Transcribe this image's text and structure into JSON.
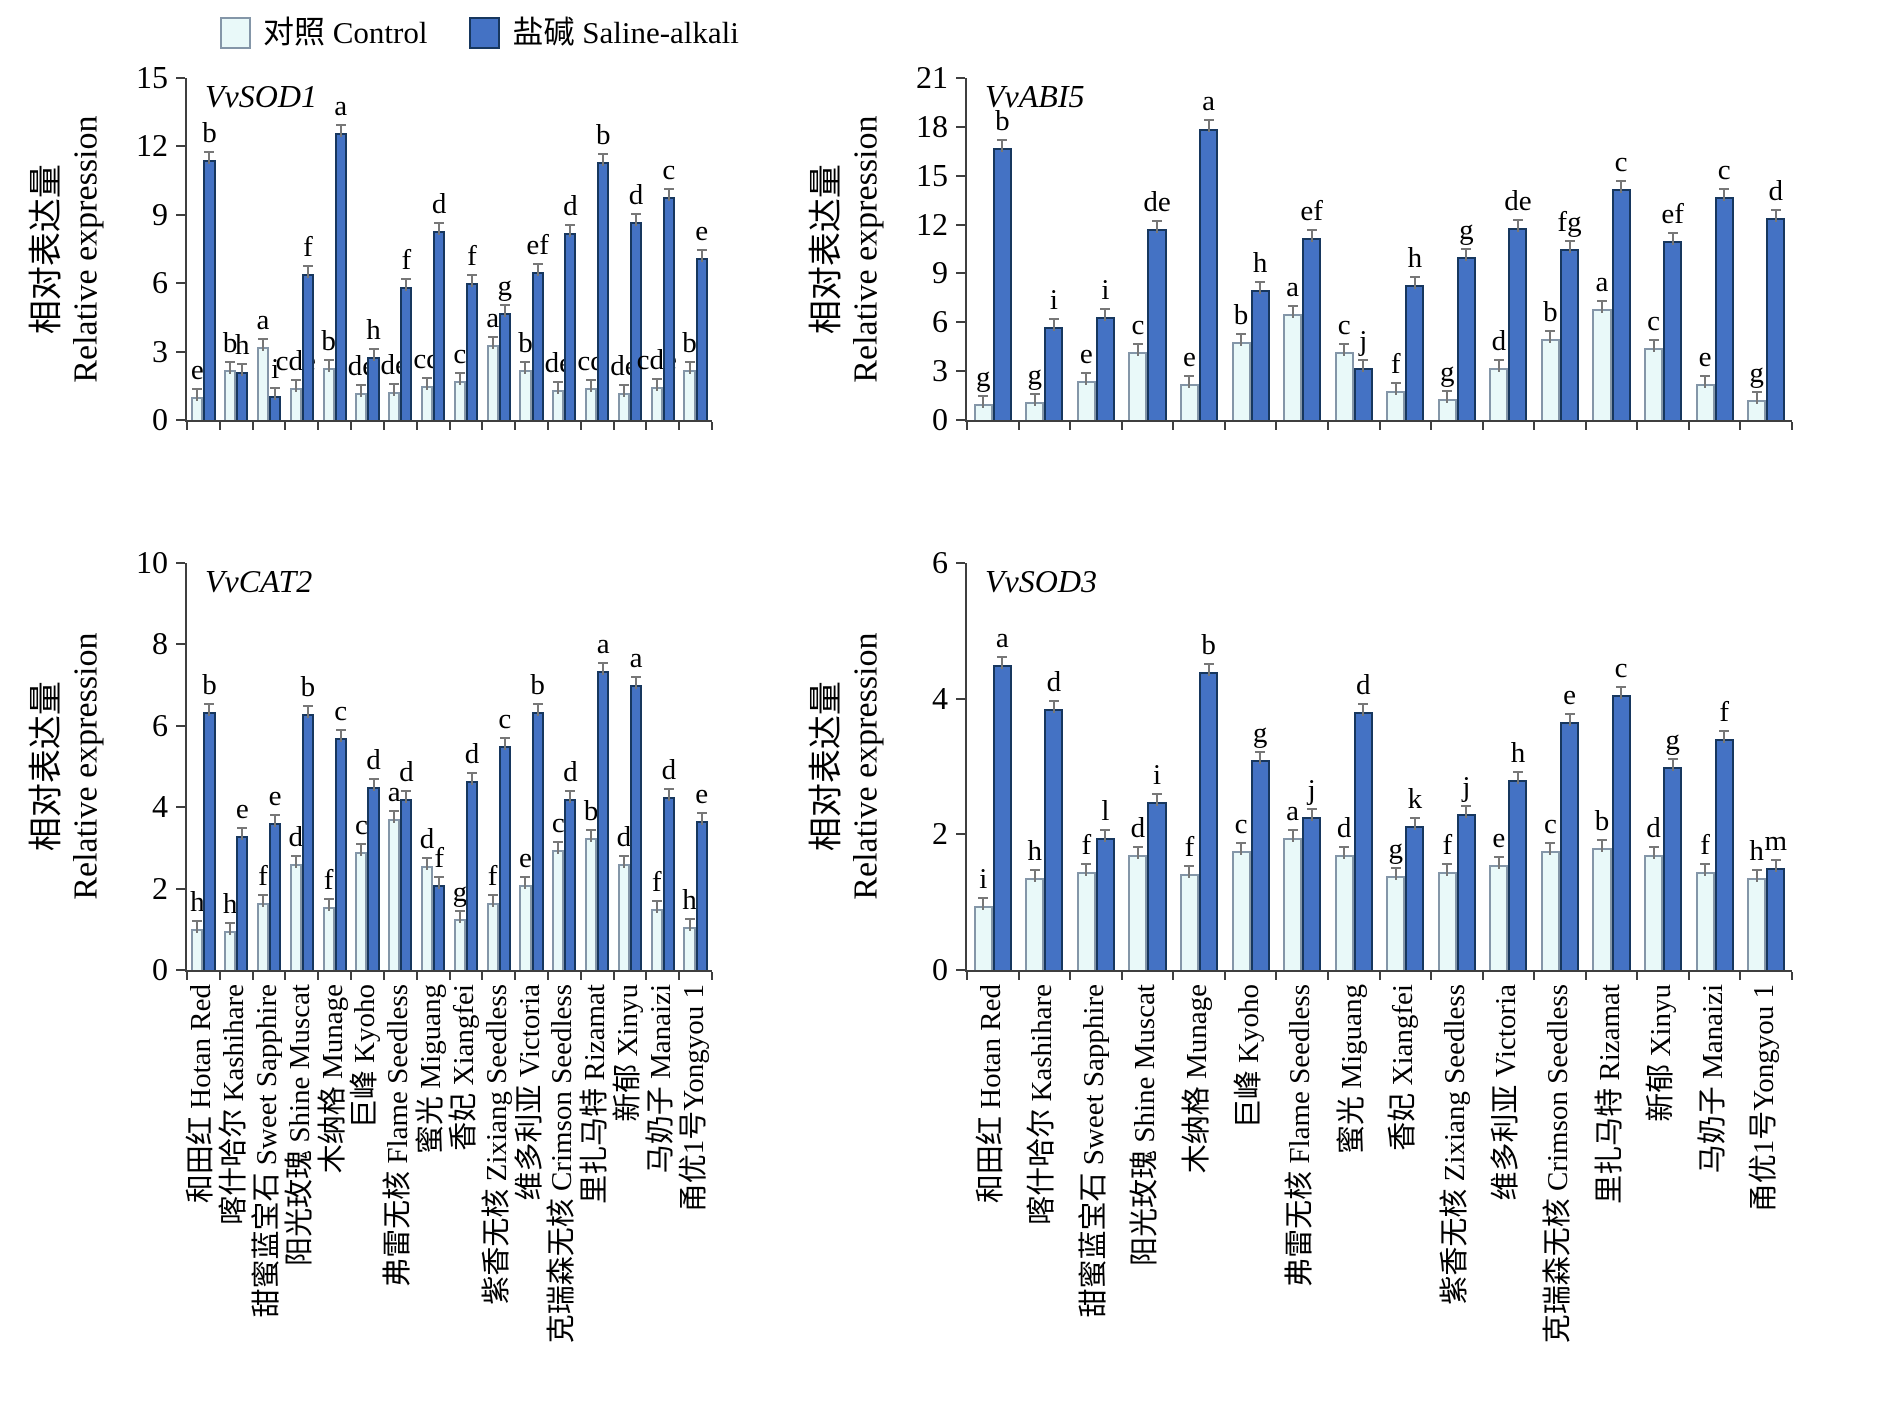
{
  "legend": {
    "control_label": "对照 Control",
    "saline_label": "盐碱 Saline-alkali"
  },
  "colors": {
    "control_fill": "#E9F9F9",
    "control_border": "#8496A8",
    "saline_fill": "#4472C4",
    "saline_border": "#17375E",
    "axis": "#3f3f3f",
    "error_bar": "#777777"
  },
  "y_axis_label_zh": "相对表达量",
  "y_axis_label_en": "Relative expression",
  "categories": [
    "和田红 Hotan Red",
    "喀什哈尔 Kashihare",
    "甜蜜蓝宝石 Sweet Sapphire",
    "阳光玫瑰 Shine Muscat",
    "木纳格 Munage",
    "巨峰 Kyoho",
    "弗雷无核 Flame Seedless",
    "蜜光 Miguang",
    "香妃 Xiangfei",
    "紫香无核 Zixiang Seedless",
    "维多利亚 Victoria",
    "克瑞森无核 Crimson Seedless",
    "里扎马特 Rizamat",
    "新郁 Xinyu",
    "马奶子 Manaizi",
    "甬优1号Yongyou 1"
  ],
  "chart_data": [
    {
      "type": "bar",
      "title": "VvSOD1",
      "ylim": [
        0,
        15
      ],
      "yticks": [
        0,
        3,
        6,
        9,
        12,
        15
      ],
      "ylabel": "相对表达量 Relative expression",
      "legend_position": "top",
      "series": [
        {
          "name": "对照 Control",
          "values": [
            1.0,
            2.2,
            3.2,
            1.4,
            2.3,
            1.2,
            1.25,
            1.5,
            1.7,
            3.3,
            2.2,
            1.3,
            1.4,
            1.2,
            1.45,
            2.2
          ],
          "letters": [
            "e",
            "b",
            "a",
            "cde",
            "b",
            "de",
            "de",
            "cd",
            "c",
            "a",
            "b",
            "de",
            "cd",
            "de",
            "cde",
            "b"
          ]
        },
        {
          "name": "盐碱 Saline-alkali",
          "values": [
            11.4,
            2.1,
            1.05,
            6.4,
            12.6,
            2.75,
            5.85,
            8.3,
            6.0,
            4.7,
            6.5,
            8.2,
            11.3,
            8.7,
            9.8,
            7.1
          ],
          "letters": [
            "b",
            "h",
            "i",
            "f",
            "a",
            "h",
            "f",
            "d",
            "f",
            "g",
            "ef",
            "d",
            "b",
            "d",
            "c",
            "e"
          ]
        }
      ]
    },
    {
      "type": "bar",
      "title": "VvABI5",
      "ylim": [
        0,
        21
      ],
      "yticks": [
        0,
        3,
        6,
        9,
        12,
        15,
        18,
        21
      ],
      "ylabel": "相对表达量 Relative expression",
      "legend_position": "top",
      "series": [
        {
          "name": "对照 Control",
          "values": [
            1.0,
            1.1,
            2.4,
            4.2,
            2.2,
            4.8,
            6.5,
            4.2,
            1.8,
            1.3,
            3.2,
            5.0,
            6.8,
            4.4,
            2.2,
            1.2
          ],
          "letters": [
            "g",
            "g",
            "e",
            "c",
            "e",
            "b",
            "a",
            "c",
            "f",
            "g",
            "d",
            "b",
            "a",
            "c",
            "e",
            "g"
          ]
        },
        {
          "name": "盐碱 Saline-alkali",
          "values": [
            16.7,
            5.7,
            6.3,
            11.7,
            17.9,
            8.0,
            11.2,
            3.2,
            8.3,
            10.0,
            11.8,
            10.5,
            14.2,
            11.0,
            13.7,
            12.4
          ],
          "letters": [
            "b",
            "i",
            "i",
            "de",
            "a",
            "h",
            "ef",
            "j",
            "h",
            "g",
            "de",
            "fg",
            "c",
            "ef",
            "c",
            "d"
          ]
        }
      ]
    },
    {
      "type": "bar",
      "title": "VvCAT2",
      "ylim": [
        0,
        10
      ],
      "yticks": [
        0,
        2,
        4,
        6,
        8,
        10
      ],
      "ylabel": "相对表达量 Relative expression",
      "legend_position": "top",
      "series": [
        {
          "name": "对照 Control",
          "values": [
            1.0,
            0.95,
            1.65,
            2.6,
            1.55,
            2.9,
            3.7,
            2.55,
            1.25,
            1.65,
            2.1,
            2.95,
            3.25,
            2.6,
            1.5,
            1.05
          ],
          "letters": [
            "h",
            "h",
            "f",
            "d",
            "f",
            "c",
            "a",
            "d",
            "g",
            "f",
            "e",
            "c",
            "b",
            "d",
            "f",
            "h"
          ]
        },
        {
          "name": "盐碱 Saline-alkali",
          "values": [
            6.35,
            3.3,
            3.6,
            6.3,
            5.7,
            4.5,
            4.2,
            2.1,
            4.65,
            5.5,
            6.35,
            4.2,
            7.35,
            7.0,
            4.25,
            3.65
          ],
          "letters": [
            "b",
            "e",
            "e",
            "b",
            "c",
            "d",
            "d",
            "f",
            "d",
            "c",
            "b",
            "d",
            "a",
            "a",
            "d",
            "e"
          ]
        }
      ]
    },
    {
      "type": "bar",
      "title": "VvSOD3",
      "ylim": [
        0,
        6
      ],
      "yticks": [
        0,
        2,
        4,
        6
      ],
      "ylabel": "相对表达量 Relative expression",
      "legend_position": "top",
      "series": [
        {
          "name": "对照 Control",
          "values": [
            0.95,
            1.35,
            1.45,
            1.7,
            1.42,
            1.75,
            1.95,
            1.7,
            1.38,
            1.45,
            1.55,
            1.75,
            1.8,
            1.7,
            1.45,
            1.35
          ],
          "letters": [
            "i",
            "h",
            "f",
            "d",
            "f",
            "c",
            "a",
            "d",
            "g",
            "f",
            "e",
            "c",
            "b",
            "d",
            "f",
            "h"
          ]
        },
        {
          "name": "盐碱 Saline-alkali",
          "values": [
            4.5,
            3.85,
            1.95,
            2.48,
            4.4,
            3.1,
            2.25,
            3.8,
            2.12,
            2.3,
            2.8,
            3.65,
            4.05,
            3.0,
            3.4,
            1.5
          ],
          "letters": [
            "a",
            "d",
            "l",
            "i",
            "b",
            "g",
            "j",
            "d",
            "k",
            "j",
            "h",
            "e",
            "c",
            "g",
            "f",
            "m"
          ]
        }
      ]
    }
  ]
}
